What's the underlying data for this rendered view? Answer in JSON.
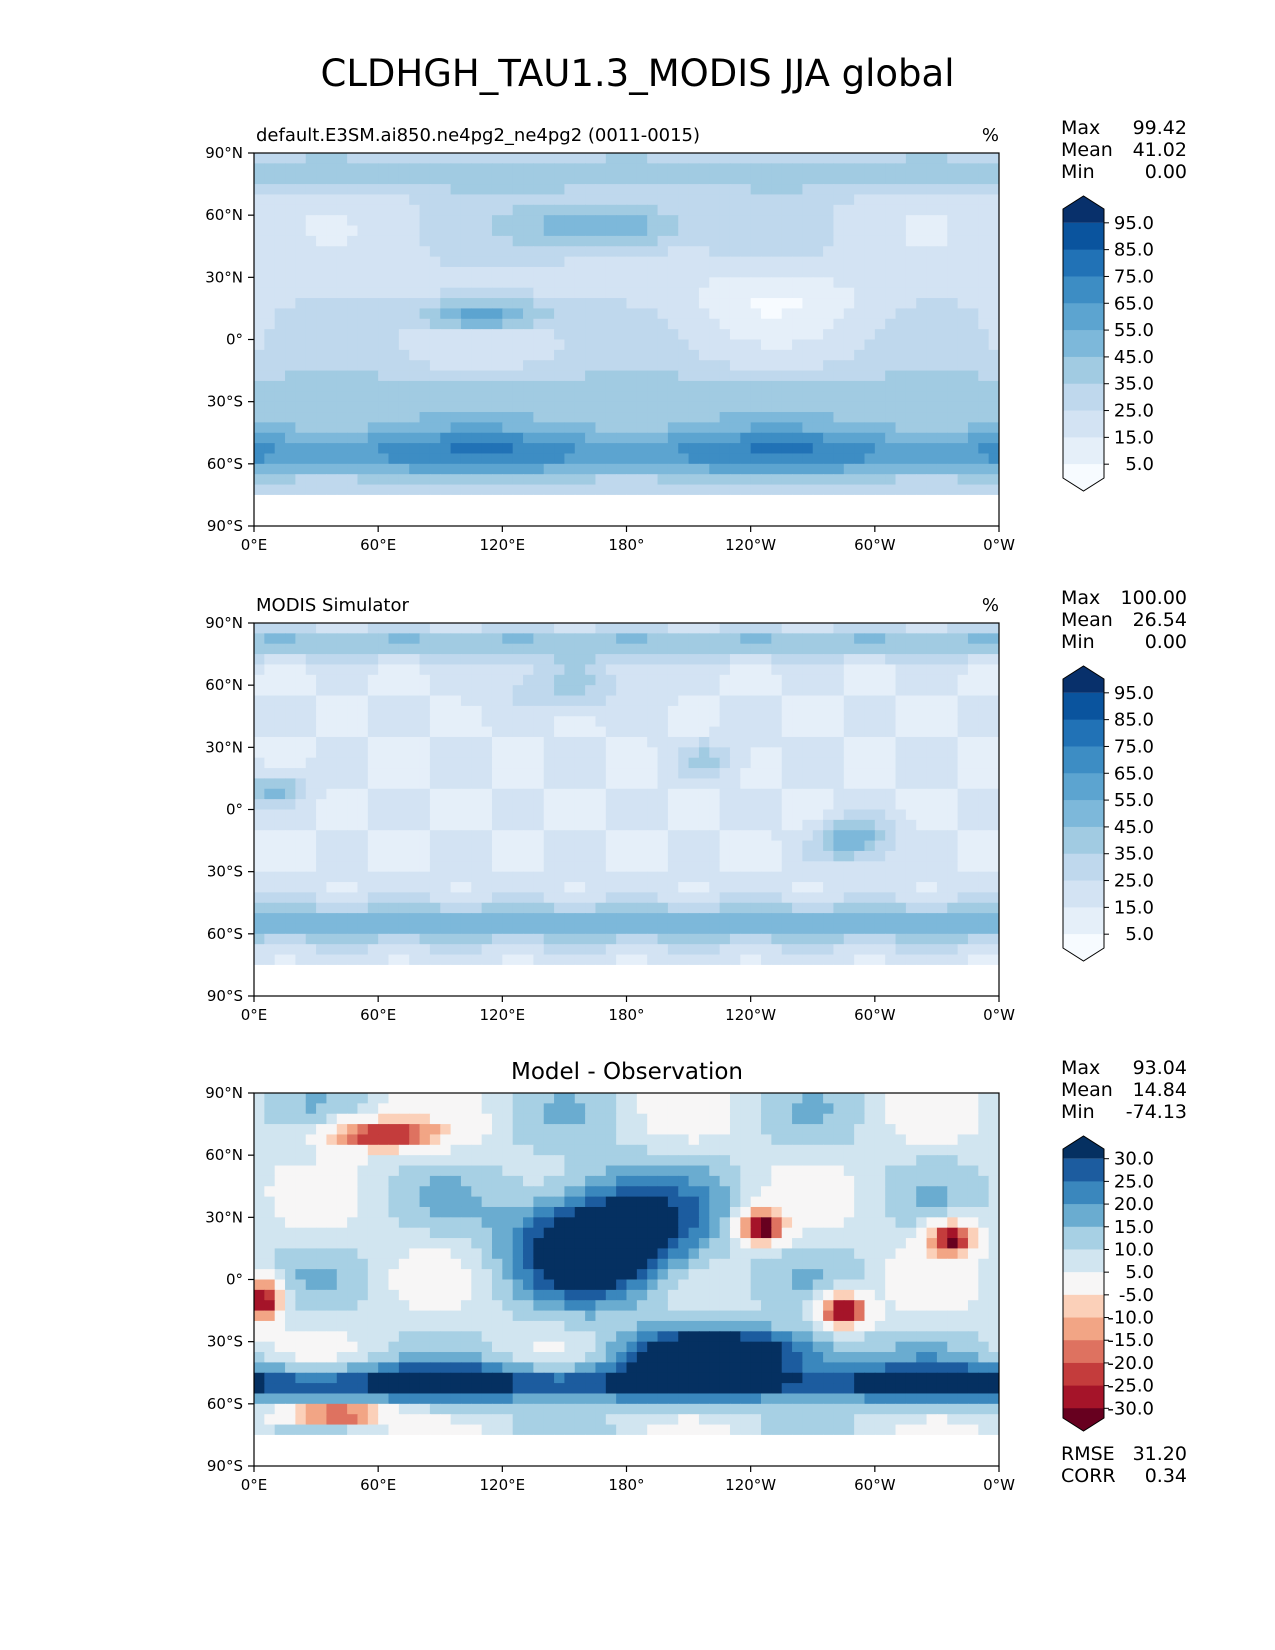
{
  "title": "CLDHGH_TAU1.3_MODIS JJA global",
  "x_ticks": [
    "0°E",
    "60°E",
    "120°E",
    "180°",
    "120°W",
    "60°W",
    "0°W"
  ],
  "y_ticks": [
    "90°N",
    "60°N",
    "30°N",
    "0°",
    "30°S",
    "60°S",
    "90°S"
  ],
  "chart_data": [
    {
      "type": "heatmap",
      "panel": "model",
      "left_title": "default.E3SM.ai850.ne4pg2_ne4pg2 (0011-0015)",
      "units": "%",
      "stats": {
        "max_label": "Max",
        "max": "99.42",
        "mean_label": "Mean",
        "mean": "41.02",
        "min_label": "Min",
        "min": "0.00"
      },
      "xlim": [
        0,
        360
      ],
      "ylim": [
        -90,
        90
      ],
      "colorbar_labels": [
        "95.0",
        "85.0",
        "75.0",
        "65.0",
        "55.0",
        "45.0",
        "35.0",
        "25.0",
        "15.0",
        "5.0"
      ],
      "colors": [
        "#f7fbff",
        "#e5eff9",
        "#d3e3f3",
        "#bfd8ed",
        "#a1cbe2",
        "#7db8da",
        "#5ca4d0",
        "#3d8dc4",
        "#2172b6",
        "#0a549e",
        "#08306b"
      ]
    },
    {
      "type": "heatmap",
      "panel": "observation",
      "left_title": "MODIS Simulator",
      "units": "%",
      "stats": {
        "max_label": "Max",
        "max": "100.00",
        "mean_label": "Mean",
        "mean": "26.54",
        "min_label": "Min",
        "min": "0.00"
      },
      "xlim": [
        0,
        360
      ],
      "ylim": [
        -90,
        90
      ],
      "colorbar_labels": [
        "95.0",
        "85.0",
        "75.0",
        "65.0",
        "55.0",
        "45.0",
        "35.0",
        "25.0",
        "15.0",
        "5.0"
      ],
      "colors": [
        "#f7fbff",
        "#e5eff9",
        "#d3e3f3",
        "#bfd8ed",
        "#a1cbe2",
        "#7db8da",
        "#5ca4d0",
        "#3d8dc4",
        "#2172b6",
        "#0a549e",
        "#08306b"
      ]
    },
    {
      "type": "heatmap",
      "panel": "difference",
      "center_title": "Model - Observation",
      "stats": {
        "max_label": "Max",
        "max": "93.04",
        "mean_label": "Mean",
        "mean": "14.84",
        "min_label": "Min",
        "min": "-74.13"
      },
      "extra": {
        "rmse_label": "RMSE",
        "rmse": "31.20",
        "corr_label": "CORR",
        "corr": "0.34"
      },
      "xlim": [
        0,
        360
      ],
      "ylim": [
        -90,
        90
      ],
      "colorbar_labels": [
        "30.0",
        "25.0",
        "20.0",
        "15.0",
        "10.0",
        "5.0",
        "-5.0",
        "-10.0",
        "-15.0",
        "-20.0",
        "-25.0",
        "-30.0"
      ],
      "colors": [
        "#67001f",
        "#a51429",
        "#c43c3c",
        "#de7260",
        "#f2a585",
        "#fbd0b9",
        "#f7f6f6",
        "#d1e5f0",
        "#a7d0e4",
        "#6aacd0",
        "#3a87bd",
        "#1c5c9f",
        "#053061"
      ]
    }
  ]
}
